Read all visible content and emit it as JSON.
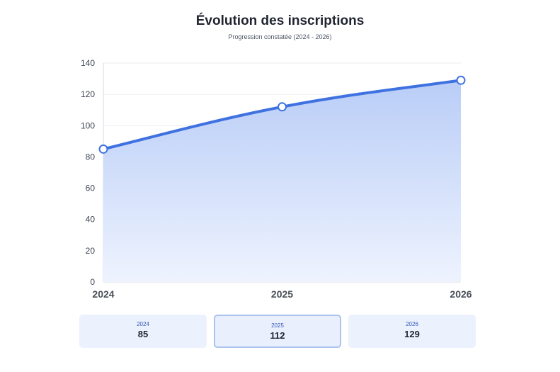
{
  "header": {
    "title": "Évolution des inscriptions",
    "subtitle": "Progression constatée (2024 - 2026)"
  },
  "chart_data": {
    "type": "area",
    "title": "Évolution des inscriptions",
    "subtitle": "Progression constatée (2024 - 2026)",
    "xlabel": "",
    "ylabel": "",
    "categories": [
      "2024",
      "2025",
      "2026"
    ],
    "values": [
      85,
      112,
      129
    ],
    "ylim": [
      0,
      140
    ],
    "yticks": [
      0,
      20,
      40,
      60,
      80,
      100,
      120,
      140
    ],
    "grid": true,
    "legend": "none",
    "colors": {
      "line": "#3f72e0",
      "fill_top": "#b9cdf7",
      "fill_bottom": "#eef3fe"
    }
  },
  "cards": [
    {
      "year": "2024",
      "value": "85",
      "active": false
    },
    {
      "year": "2025",
      "value": "112",
      "active": true
    },
    {
      "year": "2026",
      "value": "129",
      "active": false
    }
  ]
}
